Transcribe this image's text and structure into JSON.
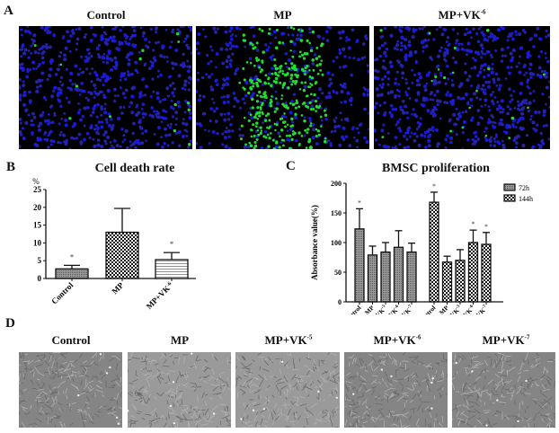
{
  "panelA": {
    "letter": "A",
    "images": [
      {
        "title": "Control",
        "sup": "",
        "description": "fluorescence, blue nuclei, few green cells"
      },
      {
        "title": "MP+",
        "display": "MP",
        "sup": "",
        "description": "fluorescence, many green cells"
      },
      {
        "title": "MP+VK",
        "sup": "-6",
        "description": "fluorescence, blue nuclei, few green cells"
      }
    ],
    "titles": [
      "Control",
      "MP",
      "MP+VK"
    ],
    "sups": [
      "",
      "",
      "-6"
    ]
  },
  "panelB": {
    "letter": "B"
  },
  "panelC": {
    "letter": "C"
  },
  "panelD": {
    "letter": "D",
    "titles": [
      "Control",
      "MP",
      "MP+VK",
      "MP+VK",
      "MP+VK"
    ],
    "sups": [
      "",
      "",
      "-5",
      "-6",
      "-7"
    ]
  },
  "chart_data": [
    {
      "type": "bar",
      "title": "Cell death rate",
      "ylabel": "%",
      "xlabel": "",
      "ylim": [
        0,
        25
      ],
      "yticks": [
        0,
        5,
        10,
        15,
        20,
        25
      ],
      "categories": [
        "Control",
        "MP",
        "MP+VK-6"
      ],
      "values": [
        2.7,
        13.0,
        5.3
      ],
      "error": [
        1.0,
        6.7,
        2.0
      ],
      "significance": [
        "*",
        "",
        "*"
      ],
      "patterns": [
        "dense-gray",
        "checker",
        "horizontal-lines"
      ],
      "grid": false,
      "legend": null
    },
    {
      "type": "bar",
      "title": "BMSC proliferation",
      "ylabel": "Absorbance value(%)",
      "xlabel": "",
      "ylim": [
        0,
        200
      ],
      "yticks": [
        0,
        50,
        100,
        150,
        200
      ],
      "categories": [
        "Control",
        "MP",
        "MP+VK-5",
        "MP+VK-6",
        "MP+VK-7"
      ],
      "series": [
        {
          "name": "72h",
          "values": [
            123,
            79,
            84,
            92,
            84
          ],
          "error": [
            34,
            15,
            16,
            28,
            15
          ],
          "significance": [
            "*",
            "",
            "",
            "",
            ""
          ],
          "pattern": "dense-gray"
        },
        {
          "name": "144h",
          "values": [
            168,
            67,
            70,
            100,
            97
          ],
          "error": [
            17,
            10,
            18,
            21,
            20
          ],
          "significance": [
            "*",
            "",
            "",
            "*",
            "*"
          ],
          "pattern": "checker"
        }
      ],
      "grid": false,
      "legend": {
        "position": "upper-right",
        "entries": [
          "72h",
          "144h"
        ]
      }
    }
  ]
}
